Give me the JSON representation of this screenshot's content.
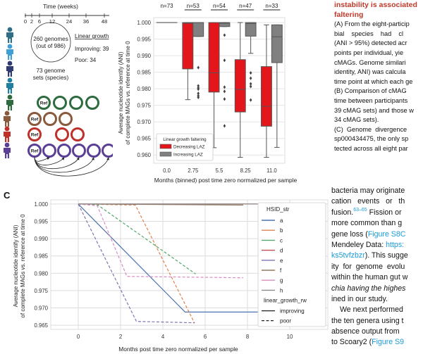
{
  "panel_a": {
    "timeline_title": "Time (weeks)",
    "timeline_ticks": [
      "0",
      "2",
      "6",
      "12",
      "24",
      "36",
      "48"
    ],
    "circle_line1": "260 genomes",
    "circle_line2": "(out of 986)",
    "sets_line1": "73 genome",
    "sets_line2": "sets (species)",
    "growth_header": "Linear growth",
    "improving": "Improving: 39",
    "poor": "Poor: 34",
    "ref_label": "Ref",
    "person_colors": [
      "#2f6f86",
      "#3f9fd6",
      "#2f3b73",
      "#1f7fa3"
    ],
    "rows": [
      {
        "color": "#2e6b3e",
        "circles": 4
      },
      {
        "color": "#8a5a3c",
        "circles": 3
      },
      {
        "color": "#c0302b",
        "circles": 3
      },
      {
        "color": "#5b3f96",
        "circles": 6
      }
    ]
  },
  "panel_labels": {
    "c": "C"
  },
  "right_text": {
    "heading_line1": "instability is associated",
    "heading_line2": "faltering",
    "para1": [
      "(A) From the eight-particip",
      "bial    species    had    cl",
      "(ANI > 95%) detected acr",
      "points per individual, yie",
      "cMAGs. Genome similari",
      "identity, ANI) was calcula",
      "time point at which each ge",
      "(B) Comparison of cMAG",
      "time between participants",
      "39 cMAG sets) and those w",
      "34 cMAG sets).",
      "(C)  Genome  divergence",
      "sp000434475, the only sp",
      "tected across all eight par"
    ],
    "para2": [
      "bacteria may originate",
      "cation   events   or   th",
      "fusion.",
      "more common than g",
      "gene loss (",
      "Mendeley Data: ",
      "ks5tvfzbzr",
      "ity  for  genome  evolu",
      "within the human gut w",
      "chia having the highes",
      "ined in our study.",
      "We next performed",
      "the ten genera using t",
      "absence output from",
      "to Scoary2 ("
    ],
    "citation": "63–65",
    "fission_rest": " Fission or",
    "figure_link1": "Figure S8C",
    "figure_link2": "Figure S9",
    "mendeley_link": "https:",
    "suggest_rest": "). This sugge"
  },
  "chart_data": [
    {
      "type": "box",
      "title": "",
      "xlabel": "Months (binned) post time zero normalized per sample",
      "ylabel": "Average nucleotide identify (ANI) of complete MAGs vs. reference at time 0",
      "ylabel_line1": "Average nucleotide identify (ANI)",
      "ylabel_line2": "of complete MAGs vs. reference at time 0",
      "categories": [
        "0.0",
        "2.75",
        "5.5",
        "8.25",
        "11.0"
      ],
      "counts": [
        "n=73",
        "n=53",
        "n=54",
        "n=47",
        "n=33"
      ],
      "ylim": [
        0.9575,
        1.0015
      ],
      "yticks": [
        "1.000",
        "0.995",
        "0.990",
        "0.985",
        "0.980",
        "0.975",
        "0.970",
        "0.965",
        "0.960"
      ],
      "legend_title": "Linear growth faltering",
      "legend_position": "lower-left",
      "series": [
        {
          "name": "Decreasing LAZ",
          "color": "#e3161b",
          "boxes": [
            {
              "cat": "0.0",
              "q1": 1.0,
              "median": 1.0,
              "q3": 1.0,
              "whislo": 1.0,
              "whishi": 1.0,
              "fliers": []
            },
            {
              "cat": "2.75",
              "q1": 0.986,
              "median": 0.9998,
              "q3": 1.0,
              "whislo": 0.9767,
              "whishi": 1.0,
              "fliers": []
            },
            {
              "cat": "5.5",
              "q1": 0.979,
              "median": 0.9848,
              "q3": 1.0,
              "whislo": 0.9622,
              "whishi": 1.0,
              "fliers": []
            },
            {
              "cat": "8.25",
              "q1": 0.973,
              "median": 0.9798,
              "q3": 0.9888,
              "whislo": 0.9593,
              "whishi": 1.0,
              "fliers": []
            },
            {
              "cat": "11.0",
              "q1": 0.9687,
              "median": 0.9747,
              "q3": 0.9867,
              "whislo": 0.9593,
              "whishi": 0.9993,
              "fliers": []
            }
          ]
        },
        {
          "name": "Increasing LAZ",
          "color": "#808080",
          "boxes": [
            {
              "cat": "0.0",
              "q1": 1.0,
              "median": 1.0,
              "q3": 1.0,
              "whislo": 1.0,
              "whishi": 1.0,
              "fliers": []
            },
            {
              "cat": "2.75",
              "q1": 0.9958,
              "median": 1.0,
              "q3": 1.0,
              "whislo": 0.9958,
              "whishi": 1.0,
              "fliers": [
                0.9864,
                0.9809,
                0.9803,
                0.9799,
                0.9786,
                0.9779,
                0.9774
              ]
            },
            {
              "cat": "5.5",
              "q1": 0.9988,
              "median": 0.9998,
              "q3": 1.0,
              "whislo": 0.9988,
              "whishi": 1.0,
              "fliers": [
                0.9962,
                0.9886,
                0.9805,
                0.9792,
                0.9769,
                0.9688
              ]
            },
            {
              "cat": "8.25",
              "q1": 0.9959,
              "median": 0.9997,
              "q3": 1.0,
              "whislo": 0.9907,
              "whishi": 1.0,
              "fliers": [
                0.9848,
                0.9832,
                0.9815,
                0.9807,
                0.9766
              ]
            },
            {
              "cat": "11.0",
              "q1": 0.9879,
              "median": 0.9957,
              "q3": 0.9993,
              "whislo": 0.9623,
              "whishi": 0.9993,
              "fliers": []
            }
          ]
        }
      ]
    },
    {
      "type": "line",
      "title": "",
      "xlabel": "Months post time zero normalized per sample",
      "ylabel": "Average nucleotide identify (ANI) of complete MAGs vs. reference at time 0",
      "ylabel_line1": "Average nucleotide identify (ANI)",
      "ylabel_line2": "of complete MAGs vs. reference at time 0",
      "xlim": [
        -1.3,
        11.8
      ],
      "ylim": [
        0.9638,
        1.0012
      ],
      "xticks": [
        "0",
        "2",
        "4",
        "6",
        "8",
        "10"
      ],
      "yticks": [
        "1.000",
        "0.995",
        "0.990",
        "0.985",
        "0.980",
        "0.975",
        "0.970",
        "0.965"
      ],
      "grid": true,
      "legend_position": "right",
      "legend_title_hue": "HSID_str",
      "legend_title_style": "linear_growth_rw",
      "style_entries": [
        "improving",
        "poor"
      ],
      "series": [
        {
          "name": "a",
          "color": "#4c72b0",
          "style": "improving",
          "x": [
            0,
            5.05,
            10.6
          ],
          "y": [
            1.0,
            0.9688,
            0.9688
          ]
        },
        {
          "name": "b",
          "color": "#dd8452",
          "style": "poor",
          "x": [
            0,
            2.7,
            5.5
          ],
          "y": [
            1.0,
            0.9997,
            0.9656
          ]
        },
        {
          "name": "c",
          "color": "#55a868",
          "style": "poor",
          "x": [
            0,
            0.9,
            5.55
          ],
          "y": [
            1.0,
            0.9998,
            0.9798
          ]
        },
        {
          "name": "d",
          "color": "#c44e52",
          "style": "improving",
          "x": [
            0,
            11.0
          ],
          "y": [
            1.0,
            1.0
          ]
        },
        {
          "name": "e",
          "color": "#8172b3",
          "style": "poor",
          "x": [
            0,
            2.75,
            5.5
          ],
          "y": [
            1.0,
            0.9661,
            0.9657
          ]
        },
        {
          "name": "f",
          "color": "#937860",
          "style": "improving",
          "x": [
            0,
            7.8
          ],
          "y": [
            1.0,
            0.9997
          ]
        },
        {
          "name": "g",
          "color": "#da8bc3",
          "style": "poor",
          "x": [
            0,
            0.9,
            2.3,
            7.8
          ],
          "y": [
            1.0,
            0.9995,
            0.9791,
            0.9787
          ]
        },
        {
          "name": "h",
          "color": "#8c8c8c",
          "style": "improving",
          "x": [
            0,
            11.0
          ],
          "y": [
            1.0,
            1.0
          ]
        }
      ]
    }
  ]
}
